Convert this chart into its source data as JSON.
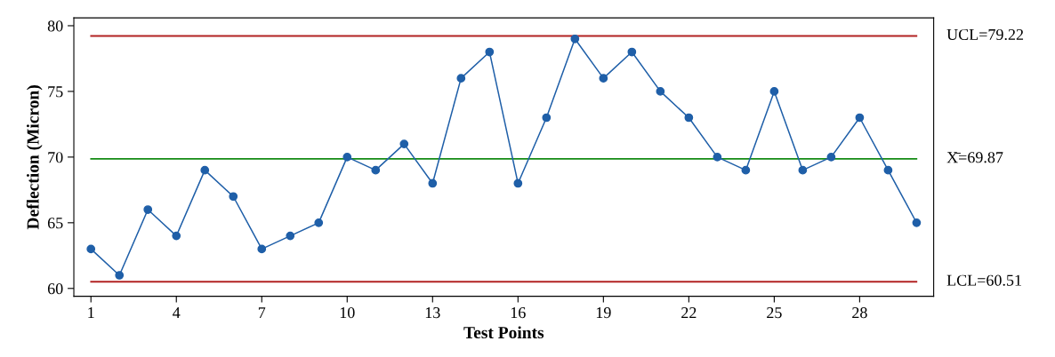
{
  "chart_data": {
    "type": "line",
    "xlabel": "Test Points",
    "ylabel": "Deflection (Micron)",
    "x": [
      1,
      2,
      3,
      4,
      5,
      6,
      7,
      8,
      9,
      10,
      11,
      12,
      13,
      14,
      15,
      16,
      17,
      18,
      19,
      20,
      21,
      22,
      23,
      24,
      25,
      26,
      27,
      28,
      29,
      30
    ],
    "series": [
      {
        "color": "#1f5fa8",
        "values": [
          63,
          61,
          66,
          64,
          69,
          67,
          63,
          64,
          65,
          70,
          69,
          71,
          68,
          76,
          78,
          68,
          73,
          79,
          76,
          78,
          75,
          73,
          70,
          69,
          75,
          69,
          70,
          73,
          69,
          65
        ]
      }
    ],
    "marker": "circle",
    "line_style": "solid",
    "xlim": [
      0.4,
      30.6
    ],
    "xticks": [
      1,
      4,
      7,
      10,
      13,
      16,
      19,
      22,
      25,
      28
    ],
    "ylim": [
      59.4,
      80.6
    ],
    "yticks": [
      60,
      65,
      70,
      75,
      80
    ],
    "grid": false,
    "legend": false,
    "ref_lines": [
      {
        "axis": "y",
        "value": 79.22,
        "label": "UCL=79.22",
        "color": "#b22222",
        "line_style": "solid"
      },
      {
        "axis": "y",
        "value": 69.87,
        "label": "X̄=69.87",
        "color": "#138a13",
        "line_style": "solid"
      },
      {
        "axis": "y",
        "value": 60.51,
        "label": "LCL=60.51",
        "color": "#b22222",
        "line_style": "solid"
      }
    ]
  }
}
